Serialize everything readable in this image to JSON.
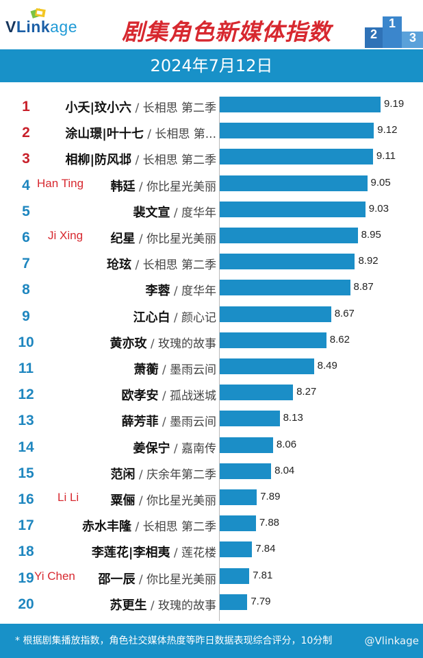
{
  "header": {
    "logo": {
      "v": "V",
      "link": "Link",
      "age": "age"
    },
    "title": "剧集角色新媒体指数",
    "date": "2024年7月12日"
  },
  "footer": {
    "note": "* 根据剧集播放指数，角色社交媒体热度等昨日数据表现综合评分，10分制",
    "watermark": "@Vlinkage"
  },
  "colors": {
    "bar": "#1b8ec7",
    "band": "#1891c8",
    "top_rank": "#c8202a",
    "rank": "#1e86bf",
    "annotation": "#d7282f"
  },
  "chart_data": {
    "type": "bar",
    "orientation": "horizontal",
    "title": "剧集角色新媒体指数",
    "xlim": [
      0,
      9.19
    ],
    "rows": [
      {
        "rank": "1",
        "role": "小夭|玟小六",
        "sep": "/",
        "show": "长相思 第二季",
        "value": 9.19,
        "annotation": ""
      },
      {
        "rank": "2",
        "role": "涂山璟|叶十七",
        "sep": "/",
        "show": "长相思 第...",
        "value": 9.12,
        "annotation": ""
      },
      {
        "rank": "3",
        "role": "相柳|防风邶",
        "sep": "/",
        "show": "长相思 第二季",
        "value": 9.11,
        "annotation": ""
      },
      {
        "rank": "4",
        "role": "韩廷",
        "sep": "/",
        "show": "你比星光美丽",
        "value": 9.05,
        "annotation": "Han Ting"
      },
      {
        "rank": "5",
        "role": "裴文宣",
        "sep": "/",
        "show": "度华年",
        "value": 9.03,
        "annotation": ""
      },
      {
        "rank": "6",
        "role": "纪星",
        "sep": "/",
        "show": "你比星光美丽",
        "value": 8.95,
        "annotation": "Ji Xing"
      },
      {
        "rank": "7",
        "role": "玱玹",
        "sep": "/",
        "show": "长相思 第二季",
        "value": 8.92,
        "annotation": ""
      },
      {
        "rank": "8",
        "role": "李蓉",
        "sep": "/",
        "show": "度华年",
        "value": 8.87,
        "annotation": ""
      },
      {
        "rank": "9",
        "role": "江心白",
        "sep": "/",
        "show": "颜心记",
        "value": 8.67,
        "annotation": ""
      },
      {
        "rank": "10",
        "role": "黄亦玫",
        "sep": "/",
        "show": "玫瑰的故事",
        "value": 8.62,
        "annotation": ""
      },
      {
        "rank": "11",
        "role": "萧蘅",
        "sep": "/",
        "show": "墨雨云间",
        "value": 8.49,
        "annotation": ""
      },
      {
        "rank": "12",
        "role": "欧孝安",
        "sep": "/",
        "show": "孤战迷城",
        "value": 8.27,
        "annotation": ""
      },
      {
        "rank": "13",
        "role": "薛芳菲",
        "sep": "/",
        "show": "墨雨云间",
        "value": 8.13,
        "annotation": ""
      },
      {
        "rank": "14",
        "role": "姜保宁",
        "sep": "/",
        "show": "嘉南传",
        "value": 8.06,
        "annotation": ""
      },
      {
        "rank": "15",
        "role": "范闲",
        "sep": "/",
        "show": "庆余年第二季",
        "value": 8.04,
        "annotation": ""
      },
      {
        "rank": "16",
        "role": "粟俪",
        "sep": "/",
        "show": "你比星光美丽",
        "value": 7.89,
        "annotation": "Li Li"
      },
      {
        "rank": "17",
        "role": "赤水丰隆",
        "sep": "/",
        "show": "长相思 第二季",
        "value": 7.88,
        "annotation": ""
      },
      {
        "rank": "18",
        "role": "李莲花|李相夷",
        "sep": "/",
        "show": "莲花楼",
        "value": 7.84,
        "annotation": ""
      },
      {
        "rank": "19",
        "role": "邵一辰",
        "sep": "/",
        "show": "你比星光美丽",
        "value": 7.81,
        "annotation": "Yi Chen"
      },
      {
        "rank": "20",
        "role": "苏更生",
        "sep": "/",
        "show": "玫瑰的故事",
        "value": 7.79,
        "annotation": ""
      }
    ]
  }
}
